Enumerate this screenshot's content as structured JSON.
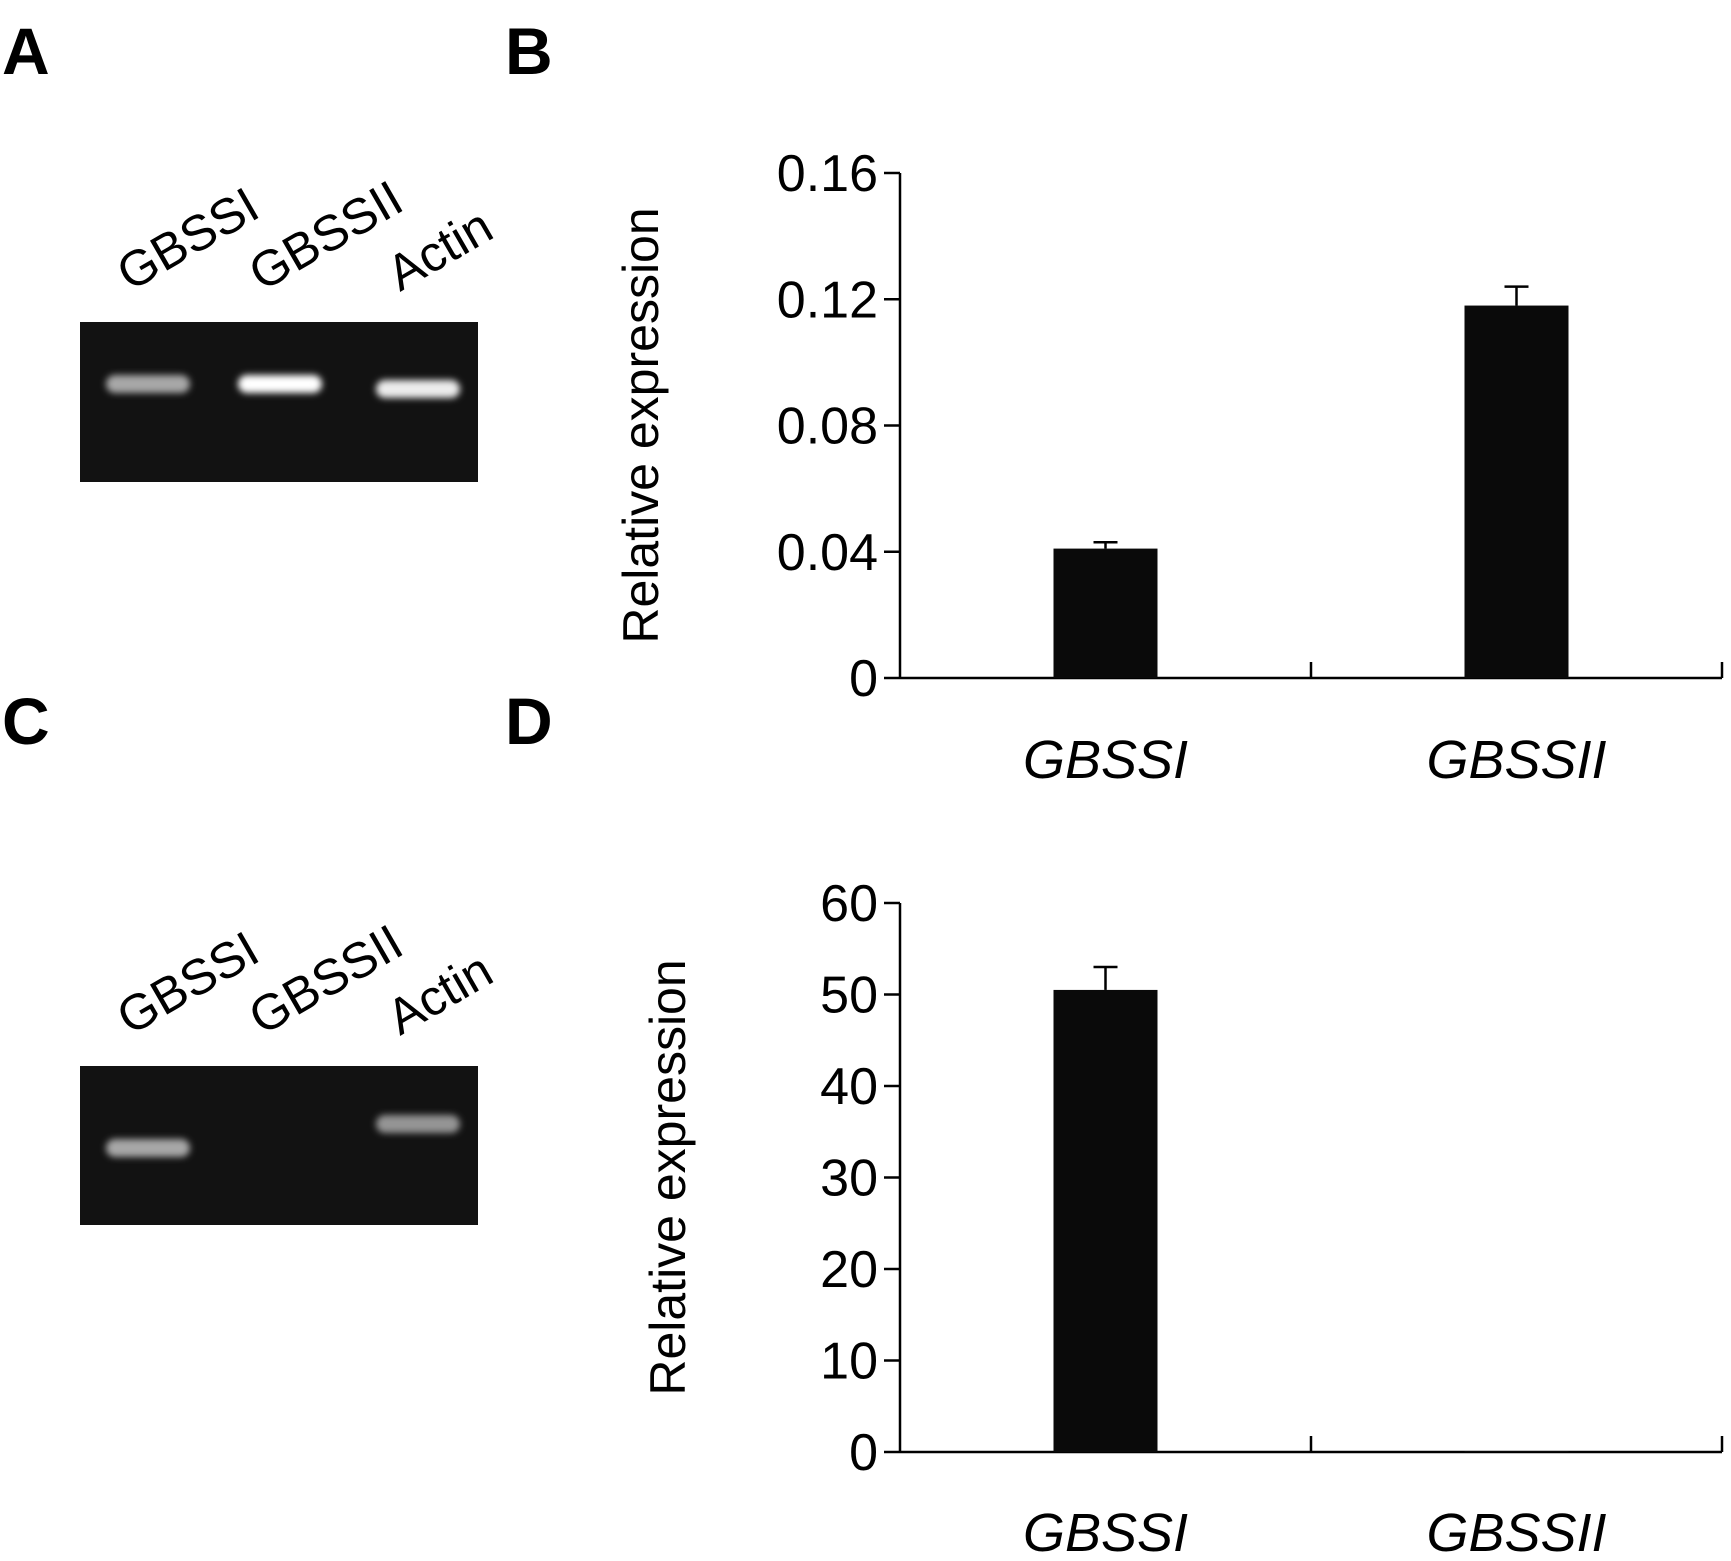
{
  "panels": {
    "a": "A",
    "b": "B",
    "c": "C",
    "d": "D"
  },
  "gels": [
    {
      "lane_labels": [
        "GBSSI",
        "GBSSII",
        "Actin"
      ],
      "band_intensity": [
        0.55,
        1.0,
        0.9
      ]
    },
    {
      "lane_labels": [
        "GBSSI",
        "GBSSII",
        "Actin"
      ],
      "band_intensity": [
        0.55,
        0.0,
        0.45
      ]
    }
  ],
  "chart_data": [
    {
      "type": "bar",
      "categories": [
        "GBSSI",
        "GBSSII"
      ],
      "values": [
        0.041,
        0.118
      ],
      "errors": [
        0.002,
        0.006
      ],
      "ylabel": "Relative expression",
      "ylim": [
        0,
        0.16
      ],
      "yticks": [
        0,
        0.04,
        0.08,
        0.12,
        0.16
      ],
      "ytick_labels": [
        "0",
        "0.04",
        "0.08",
        "0.12",
        "0.16"
      ],
      "grid": false,
      "bar_color": "#0a0a0a"
    },
    {
      "type": "bar",
      "categories": [
        "GBSSI",
        "GBSSII"
      ],
      "values": [
        50.5,
        0.1
      ],
      "errors": [
        2.5,
        0
      ],
      "ylabel": "Relative expression",
      "ylim": [
        0,
        60
      ],
      "yticks": [
        0,
        10,
        20,
        30,
        40,
        50,
        60
      ],
      "ytick_labels": [
        "0",
        "10",
        "20",
        "30",
        "40",
        "50",
        "60"
      ],
      "grid": false,
      "bar_color": "#0a0a0a"
    }
  ]
}
